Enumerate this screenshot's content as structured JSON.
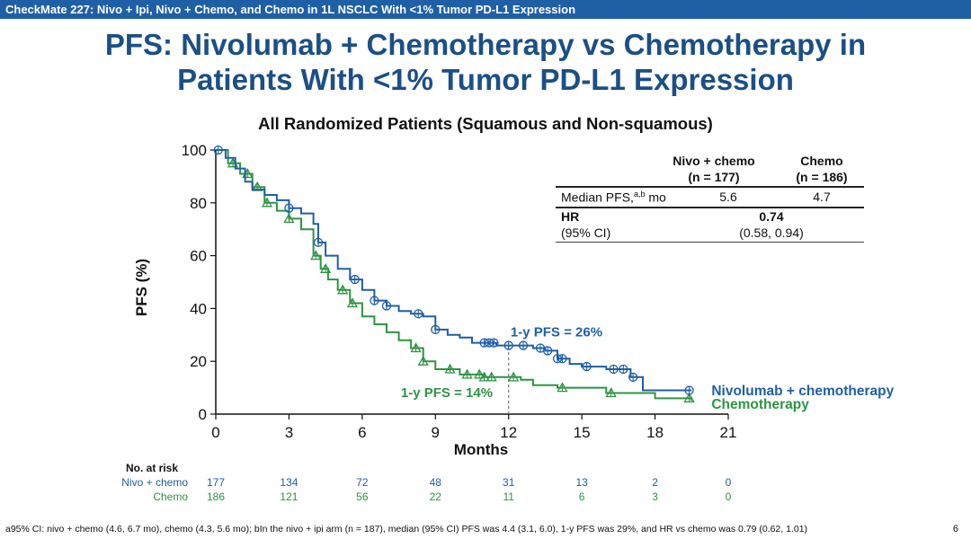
{
  "header": {
    "banner": "CheckMate 227: Nivo + Ipi, Nivo + Chemo, and Chemo in 1L NSCLC With <1% Tumor PD-L1 Expression",
    "title_line1": "PFS: Nivolumab + Chemotherapy vs Chemotherapy in",
    "title_line2": "Patients With <1% Tumor PD-L1 Expression"
  },
  "summary_table": {
    "col1_line1": "Nivo + chemo",
    "col1_line2": "(n = 177)",
    "col2_line1": "Chemo",
    "col2_line2": "(n = 186)",
    "row1_label": "Median PFS,",
    "row1_sup": "a,b",
    "row1_unit": " mo",
    "row1_val1": "5.6",
    "row1_val2": "4.7",
    "row2_label": "HR",
    "row2_val": "0.74",
    "row3_label": "(95% CI)",
    "row3_val": "(0.58, 0.94)"
  },
  "risk_table": {
    "title": "No. at risk",
    "rows": [
      {
        "label": "Nivo + chemo",
        "color": "#1f5fa5",
        "values": [
          "177",
          "134",
          "72",
          "48",
          "31",
          "13",
          "2",
          "0"
        ]
      },
      {
        "label": "Chemo",
        "color": "#2e9443",
        "values": [
          "186",
          "121",
          "56",
          "22",
          "11",
          "6",
          "3",
          "0"
        ]
      }
    ]
  },
  "footnote": "a95% CI: nivo + chemo (4.6, 6.7 mo), chemo (4.3, 5.6 mo); bIn the nivo + ipi arm (n = 187), median (95% CI) PFS was 4.4 (3.1, 6.0), 1-y PFS was 29%, and HR vs chemo was 0.79 (0.62, 1.01)",
  "page_number": "6",
  "chart_data": {
    "type": "line",
    "subtype": "kaplan-meier-step",
    "title": "All Randomized Patients (Squamous and Non-squamous)",
    "xlabel": "Months",
    "ylabel": "PFS (%)",
    "xlim": [
      0,
      21
    ],
    "ylim": [
      0,
      100
    ],
    "xticks": [
      0,
      3,
      6,
      9,
      12,
      15,
      18,
      21
    ],
    "yticks": [
      0,
      20,
      40,
      60,
      80,
      100
    ],
    "series": [
      {
        "name": "Nivolumab + chemotherapy",
        "color": "#1f5fa5",
        "marker": "circle",
        "x": [
          0,
          0.4,
          0.8,
          1.2,
          1.5,
          2.0,
          2.5,
          3.0,
          3.5,
          4.0,
          4.2,
          4.5,
          5.0,
          5.5,
          6.0,
          6.5,
          7.0,
          7.5,
          8.0,
          8.5,
          9.0,
          9.5,
          10.0,
          10.5,
          11.0,
          11.5,
          12.0,
          12.5,
          13.0,
          13.5,
          14.0,
          14.5,
          15.0,
          16.0,
          17.0,
          17.5,
          19.5
        ],
        "y": [
          100,
          97,
          93,
          88,
          85,
          83,
          81,
          78,
          76,
          72,
          65,
          60,
          55,
          51,
          47,
          43,
          41,
          39,
          38,
          37,
          32,
          30,
          29,
          27,
          27,
          26,
          26,
          26,
          25,
          24,
          21,
          19,
          18,
          17,
          14,
          9,
          9
        ],
        "censor_x": [
          0.1,
          3.0,
          4.2,
          5.7,
          6.5,
          7.0,
          8.3,
          9.0,
          11.0,
          11.2,
          11.4,
          12.0,
          12.6,
          13.3,
          13.6,
          14.0,
          14.2,
          15.2,
          16.3,
          16.7,
          17.1,
          19.4
        ],
        "annotation": "1-y PFS = 26%"
      },
      {
        "name": "Chemotherapy",
        "color": "#2e9443",
        "marker": "triangle",
        "x": [
          0,
          0.5,
          1.0,
          1.5,
          2.0,
          2.5,
          3.0,
          3.5,
          4.0,
          4.3,
          4.6,
          5.0,
          5.5,
          6.0,
          6.5,
          7.0,
          7.5,
          8.0,
          8.5,
          9.0,
          9.5,
          10.0,
          10.5,
          11.0,
          12.0,
          12.5,
          13.0,
          14.0,
          15.0,
          16.0,
          17.0,
          18.0,
          19.5
        ],
        "y": [
          100,
          95,
          91,
          86,
          80,
          77,
          74,
          70,
          60,
          55,
          51,
          47,
          42,
          37,
          34,
          31,
          28,
          25,
          20,
          17,
          17,
          15,
          15,
          14,
          14,
          13,
          11,
          10,
          10,
          8,
          8,
          6,
          5
        ],
        "censor_x": [
          0.7,
          1.3,
          1.7,
          2.1,
          3.0,
          4.1,
          4.5,
          5.2,
          5.6,
          8.2,
          8.5,
          9.6,
          10.3,
          10.8,
          11.0,
          11.3,
          12.2,
          14.2,
          16.2,
          19.4
        ],
        "annotation": "1-y PFS = 14%"
      }
    ],
    "landmark_x": 12,
    "legend_position": "bottom-right"
  }
}
